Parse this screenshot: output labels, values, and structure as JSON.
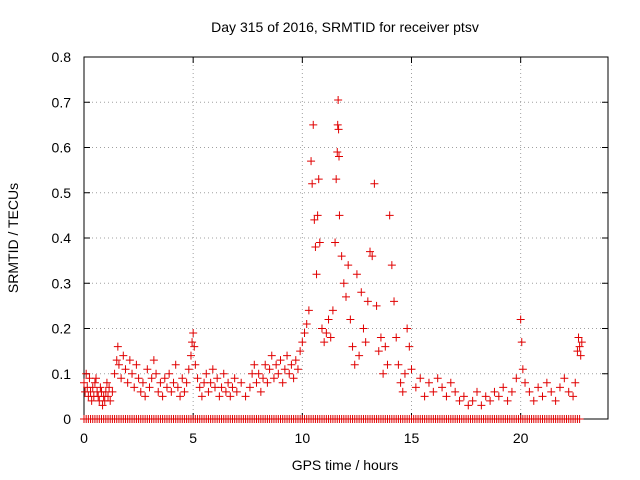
{
  "chart_data": {
    "type": "scatter",
    "title": "Day 315 of 2016, SRMTID for receiver ptsv",
    "xlabel": "GPS time / hours",
    "ylabel": "SRMTID / TECUs",
    "xlim": [
      0,
      24
    ],
    "ylim": [
      0,
      0.8
    ],
    "xticks": [
      0,
      5,
      10,
      15,
      20
    ],
    "yticks": [
      0,
      0.1,
      0.2,
      0.3,
      0.4,
      0.5,
      0.6,
      0.7,
      0.8
    ],
    "xtick_labels": [
      "0",
      "5",
      "10",
      "15",
      "20"
    ],
    "ytick_labels": [
      "0",
      "0.1",
      "0.2",
      "0.3",
      "0.4",
      "0.5",
      "0.6",
      "0.7",
      "0.8"
    ],
    "grid": true,
    "marker": "+",
    "colors": {
      "series": "#e00000",
      "grid": "#a0a0a0",
      "axis": "#000000"
    },
    "series": [
      {
        "name": "SRMTID",
        "points": [
          [
            0.0,
            0.08
          ],
          [
            0.05,
            0.06
          ],
          [
            0.1,
            0.1
          ],
          [
            0.15,
            0.07
          ],
          [
            0.2,
            0.05
          ],
          [
            0.25,
            0.09
          ],
          [
            0.3,
            0.06
          ],
          [
            0.35,
            0.04
          ],
          [
            0.4,
            0.07
          ],
          [
            0.45,
            0.05
          ],
          [
            0.5,
            0.08
          ],
          [
            0.55,
            0.09
          ],
          [
            0.6,
            0.06
          ],
          [
            0.65,
            0.05
          ],
          [
            0.7,
            0.04
          ],
          [
            0.75,
            0.07
          ],
          [
            0.8,
            0.06
          ],
          [
            0.85,
            0.03
          ],
          [
            0.9,
            0.05
          ],
          [
            0.95,
            0.04
          ],
          [
            1.0,
            0.06
          ],
          [
            1.05,
            0.08
          ],
          [
            1.1,
            0.05
          ],
          [
            1.15,
            0.07
          ],
          [
            1.2,
            0.04
          ],
          [
            1.3,
            0.06
          ],
          [
            1.4,
            0.1
          ],
          [
            1.5,
            0.13
          ],
          [
            1.55,
            0.16
          ],
          [
            1.6,
            0.12
          ],
          [
            1.7,
            0.09
          ],
          [
            1.8,
            0.14
          ],
          [
            1.9,
            0.11
          ],
          [
            2.0,
            0.08
          ],
          [
            2.1,
            0.13
          ],
          [
            2.2,
            0.1
          ],
          [
            2.3,
            0.07
          ],
          [
            2.4,
            0.12
          ],
          [
            2.5,
            0.09
          ],
          [
            2.6,
            0.06
          ],
          [
            2.7,
            0.08
          ],
          [
            2.8,
            0.05
          ],
          [
            2.9,
            0.11
          ],
          [
            3.0,
            0.07
          ],
          [
            3.1,
            0.09
          ],
          [
            3.2,
            0.13
          ],
          [
            3.3,
            0.1
          ],
          [
            3.4,
            0.06
          ],
          [
            3.5,
            0.08
          ],
          [
            3.6,
            0.05
          ],
          [
            3.7,
            0.09
          ],
          [
            3.8,
            0.07
          ],
          [
            3.9,
            0.1
          ],
          [
            4.0,
            0.06
          ],
          [
            4.1,
            0.08
          ],
          [
            4.2,
            0.12
          ],
          [
            4.3,
            0.07
          ],
          [
            4.4,
            0.05
          ],
          [
            4.5,
            0.09
          ],
          [
            4.6,
            0.06
          ],
          [
            4.7,
            0.08
          ],
          [
            4.8,
            0.11
          ],
          [
            4.9,
            0.14
          ],
          [
            4.95,
            0.17
          ],
          [
            5.0,
            0.19
          ],
          [
            5.05,
            0.16
          ],
          [
            5.1,
            0.12
          ],
          [
            5.2,
            0.09
          ],
          [
            5.3,
            0.07
          ],
          [
            5.4,
            0.05
          ],
          [
            5.5,
            0.08
          ],
          [
            5.6,
            0.1
          ],
          [
            5.7,
            0.06
          ],
          [
            5.8,
            0.08
          ],
          [
            5.9,
            0.11
          ],
          [
            6.0,
            0.07
          ],
          [
            6.1,
            0.09
          ],
          [
            6.2,
            0.05
          ],
          [
            6.3,
            0.07
          ],
          [
            6.4,
            0.1
          ],
          [
            6.5,
            0.06
          ],
          [
            6.6,
            0.08
          ],
          [
            6.7,
            0.05
          ],
          [
            6.8,
            0.07
          ],
          [
            6.9,
            0.09
          ],
          [
            7.0,
            0.06
          ],
          [
            7.2,
            0.08
          ],
          [
            7.4,
            0.05
          ],
          [
            7.6,
            0.07
          ],
          [
            7.7,
            0.1
          ],
          [
            7.8,
            0.12
          ],
          [
            7.9,
            0.08
          ],
          [
            8.0,
            0.1
          ],
          [
            8.1,
            0.06
          ],
          [
            8.2,
            0.09
          ],
          [
            8.3,
            0.12
          ],
          [
            8.4,
            0.08
          ],
          [
            8.5,
            0.11
          ],
          [
            8.6,
            0.14
          ],
          [
            8.7,
            0.09
          ],
          [
            8.8,
            0.12
          ],
          [
            8.9,
            0.1
          ],
          [
            9.0,
            0.13
          ],
          [
            9.1,
            0.08
          ],
          [
            9.2,
            0.11
          ],
          [
            9.3,
            0.14
          ],
          [
            9.4,
            0.1
          ],
          [
            9.5,
            0.12
          ],
          [
            9.6,
            0.09
          ],
          [
            9.7,
            0.13
          ],
          [
            9.8,
            0.11
          ],
          [
            9.9,
            0.15
          ],
          [
            10.0,
            0.17
          ],
          [
            10.1,
            0.19
          ],
          [
            10.2,
            0.21
          ],
          [
            10.3,
            0.24
          ],
          [
            10.4,
            0.57
          ],
          [
            10.45,
            0.52
          ],
          [
            10.5,
            0.65
          ],
          [
            10.55,
            0.44
          ],
          [
            10.6,
            0.38
          ],
          [
            10.65,
            0.32
          ],
          [
            10.7,
            0.45
          ],
          [
            10.75,
            0.53
          ],
          [
            10.8,
            0.39
          ],
          [
            10.9,
            0.2
          ],
          [
            11.0,
            0.17
          ],
          [
            11.1,
            0.19
          ],
          [
            11.2,
            0.22
          ],
          [
            11.3,
            0.18
          ],
          [
            11.4,
            0.24
          ],
          [
            11.5,
            0.39
          ],
          [
            11.55,
            0.53
          ],
          [
            11.6,
            0.59
          ],
          [
            11.62,
            0.65
          ],
          [
            11.64,
            0.705
          ],
          [
            11.66,
            0.64
          ],
          [
            11.68,
            0.58
          ],
          [
            11.7,
            0.45
          ],
          [
            11.8,
            0.36
          ],
          [
            11.9,
            0.3
          ],
          [
            12.0,
            0.27
          ],
          [
            12.1,
            0.34
          ],
          [
            12.2,
            0.22
          ],
          [
            12.3,
            0.16
          ],
          [
            12.4,
            0.12
          ],
          [
            12.5,
            0.32
          ],
          [
            12.6,
            0.14
          ],
          [
            12.7,
            0.28
          ],
          [
            12.8,
            0.2
          ],
          [
            12.9,
            0.17
          ],
          [
            13.0,
            0.26
          ],
          [
            13.1,
            0.37
          ],
          [
            13.2,
            0.36
          ],
          [
            13.3,
            0.52
          ],
          [
            13.4,
            0.25
          ],
          [
            13.5,
            0.15
          ],
          [
            13.6,
            0.18
          ],
          [
            13.7,
            0.1
          ],
          [
            13.8,
            0.16
          ],
          [
            13.9,
            0.12
          ],
          [
            14.0,
            0.45
          ],
          [
            14.1,
            0.34
          ],
          [
            14.2,
            0.26
          ],
          [
            14.3,
            0.18
          ],
          [
            14.4,
            0.12
          ],
          [
            14.5,
            0.08
          ],
          [
            14.6,
            0.06
          ],
          [
            14.7,
            0.1
          ],
          [
            14.8,
            0.2
          ],
          [
            14.9,
            0.16
          ],
          [
            15.0,
            0.11
          ],
          [
            15.2,
            0.07
          ],
          [
            15.4,
            0.09
          ],
          [
            15.6,
            0.05
          ],
          [
            15.8,
            0.08
          ],
          [
            16.0,
            0.06
          ],
          [
            16.2,
            0.09
          ],
          [
            16.4,
            0.07
          ],
          [
            16.6,
            0.05
          ],
          [
            16.8,
            0.08
          ],
          [
            17.0,
            0.06
          ],
          [
            17.2,
            0.04
          ],
          [
            17.4,
            0.05
          ],
          [
            17.6,
            0.03
          ],
          [
            17.8,
            0.04
          ],
          [
            18.0,
            0.06
          ],
          [
            18.2,
            0.03
          ],
          [
            18.4,
            0.05
          ],
          [
            18.6,
            0.04
          ],
          [
            18.8,
            0.06
          ],
          [
            19.0,
            0.05
          ],
          [
            19.2,
            0.07
          ],
          [
            19.4,
            0.04
          ],
          [
            19.6,
            0.06
          ],
          [
            19.8,
            0.09
          ],
          [
            20.0,
            0.22
          ],
          [
            20.05,
            0.17
          ],
          [
            20.1,
            0.11
          ],
          [
            20.2,
            0.08
          ],
          [
            20.4,
            0.06
          ],
          [
            20.6,
            0.04
          ],
          [
            20.8,
            0.07
          ],
          [
            21.0,
            0.05
          ],
          [
            21.2,
            0.08
          ],
          [
            21.4,
            0.06
          ],
          [
            21.6,
            0.04
          ],
          [
            21.8,
            0.07
          ],
          [
            22.0,
            0.09
          ],
          [
            22.2,
            0.06
          ],
          [
            22.4,
            0.05
          ],
          [
            22.5,
            0.08
          ],
          [
            22.6,
            0.15
          ],
          [
            22.65,
            0.18
          ],
          [
            22.7,
            0.16
          ],
          [
            22.75,
            0.14
          ],
          [
            22.8,
            0.17
          ]
        ],
        "zero_points": [
          0.0,
          0.1,
          0.2,
          0.3,
          0.4,
          0.5,
          0.6,
          0.7,
          0.8,
          0.9,
          1.0,
          1.1,
          1.2,
          1.3,
          1.4,
          1.5,
          1.6,
          1.7,
          1.8,
          1.9,
          2.0,
          2.1,
          2.2,
          2.3,
          2.4,
          2.5,
          2.6,
          2.7,
          2.8,
          2.9,
          3.0,
          3.1,
          3.2,
          3.3,
          3.4,
          3.5,
          3.6,
          3.7,
          3.8,
          3.9,
          4.0,
          4.1,
          4.2,
          4.3,
          4.4,
          4.5,
          4.6,
          4.7,
          4.8,
          4.9,
          5.0,
          5.1,
          5.2,
          5.3,
          5.4,
          5.5,
          5.6,
          5.7,
          5.8,
          5.9,
          6.0,
          6.1,
          6.2,
          6.3,
          6.4,
          6.5,
          6.6,
          6.7,
          6.8,
          6.9,
          7.0,
          7.1,
          7.2,
          7.3,
          7.4,
          7.5,
          7.6,
          7.7,
          7.8,
          7.9,
          8.0,
          8.1,
          8.2,
          8.3,
          8.4,
          8.5,
          8.6,
          8.7,
          8.8,
          8.9,
          9.0,
          9.1,
          9.2,
          9.3,
          9.4,
          9.5,
          9.6,
          9.7,
          9.8,
          9.9,
          10.0,
          10.1,
          10.2,
          10.3,
          10.4,
          10.5,
          10.6,
          10.7,
          10.8,
          10.9,
          11.0,
          11.1,
          11.2,
          11.3,
          11.4,
          11.5,
          11.6,
          11.7,
          11.8,
          11.9,
          12.0,
          12.1,
          12.2,
          12.3,
          12.4,
          12.5,
          12.6,
          12.7,
          12.8,
          12.9,
          13.0,
          13.1,
          13.2,
          13.3,
          13.4,
          13.5,
          13.6,
          13.7,
          13.8,
          13.9,
          14.0,
          14.1,
          14.2,
          14.3,
          14.4,
          14.5,
          14.6,
          14.7,
          14.8,
          14.9,
          15.0,
          15.1,
          15.2,
          15.3,
          15.4,
          15.5,
          15.6,
          15.7,
          15.8,
          15.9,
          16.0,
          16.1,
          16.2,
          16.3,
          16.4,
          16.5,
          16.6,
          16.7,
          16.8,
          16.9,
          17.0,
          17.1,
          17.2,
          17.3,
          17.4,
          17.5,
          17.6,
          17.7,
          17.8,
          17.9,
          18.0,
          18.1,
          18.2,
          18.3,
          18.4,
          18.5,
          18.6,
          18.7,
          18.8,
          18.9,
          19.0,
          19.1,
          19.2,
          19.3,
          19.4,
          19.5,
          19.6,
          19.7,
          19.8,
          19.9,
          20.0,
          20.1,
          20.2,
          20.3,
          20.4,
          20.5,
          20.6,
          20.7,
          20.8,
          20.9,
          21.0,
          21.1,
          21.2,
          21.3,
          21.4,
          21.5,
          21.6,
          21.7,
          21.8,
          21.9,
          22.0,
          22.1,
          22.2,
          22.3,
          22.4,
          22.5,
          22.6,
          22.7
        ]
      }
    ]
  }
}
